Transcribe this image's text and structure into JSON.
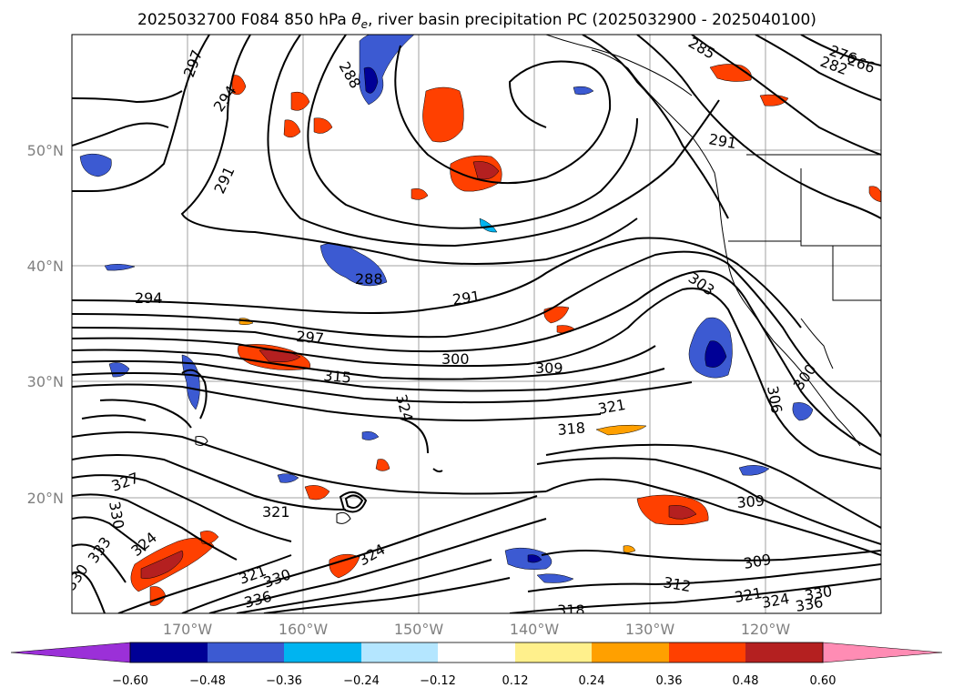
{
  "title": {
    "prefix": "2025032700 F084 850 hPa ",
    "theta_symbol": "θ",
    "theta_subscript": "e",
    "suffix": ", river basin precipitation PC (2025032900 - 2025040100)"
  },
  "latitude_labels": [
    "50°N",
    "40°N",
    "30°N",
    "20°N"
  ],
  "longitude_labels": [
    "170°W",
    "160°W",
    "150°W",
    "140°W",
    "130°W",
    "120°W"
  ],
  "colorbar": {
    "ticks": [
      "−0.60",
      "−0.48",
      "−0.36",
      "−0.24",
      "−0.12",
      "0.12",
      "0.24",
      "0.36",
      "0.48",
      "0.60"
    ],
    "colors": [
      "#9b30d8",
      "#000096",
      "#3c5ad2",
      "#00b4f0",
      "#b4e6ff",
      "#ffffff",
      "#fff08c",
      "#ffa000",
      "#ff4000",
      "#b42020",
      "#ff8cb4"
    ],
    "extend": "both"
  },
  "contour_labels": [
    "297",
    "294",
    "291",
    "288",
    "285",
    "282",
    "276",
    "266",
    "291",
    "288",
    "294",
    "291",
    "303",
    "297",
    "300",
    "309",
    "315",
    "324",
    "321",
    "318",
    "306",
    "300",
    "327",
    "330",
    "321",
    "324",
    "333",
    "330",
    "324",
    "321",
    "330",
    "336",
    "309",
    "309",
    "312",
    "321",
    "324",
    "330",
    "336",
    "318"
  ]
}
